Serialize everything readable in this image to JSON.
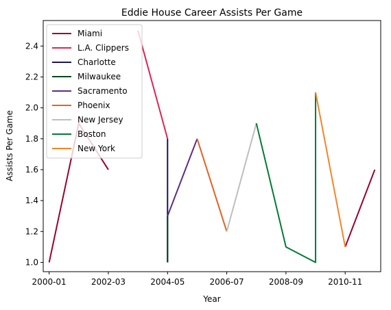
{
  "chart_data": {
    "type": "line",
    "title": "Eddie House Career Assists Per Game",
    "xlabel": "Year",
    "ylabel": "Assists Per Game",
    "x_ticks": [
      "2000-01",
      "2002-03",
      "2004-05",
      "2006-07",
      "2008-09",
      "2010-11"
    ],
    "y_ticks": [
      "1.0",
      "1.2",
      "1.4",
      "1.6",
      "1.8",
      "2.0",
      "2.2",
      "2.4"
    ],
    "xlim": [
      -0.2,
      11.2
    ],
    "ylim": [
      0.94,
      2.565
    ],
    "grid": false,
    "legend_position": "upper-left",
    "series": [
      {
        "name": "Miami",
        "color": "#98002e",
        "segments": [
          {
            "x": [
              0,
              1,
              2
            ],
            "y": [
              1.0,
              1.9,
              1.6
            ]
          },
          {
            "x": [
              10,
              11
            ],
            "y": [
              1.1,
              1.6
            ]
          }
        ]
      },
      {
        "name": "L.A. Clippers",
        "color": "#e0234e",
        "segments": [
          {
            "x": [
              3,
              4
            ],
            "y": [
              2.5,
              1.8
            ]
          }
        ]
      },
      {
        "name": "Charlotte",
        "color": "#1d1160",
        "segments": [
          {
            "x": [
              4,
              4
            ],
            "y": [
              1.8,
              1.0
            ]
          }
        ]
      },
      {
        "name": "Milwaukee",
        "color": "#00471b",
        "segments": [
          {
            "x": [
              4,
              4
            ],
            "y": [
              1.3,
              1.0
            ]
          }
        ]
      },
      {
        "name": "Sacramento",
        "color": "#5a2d81",
        "segments": [
          {
            "x": [
              4,
              5
            ],
            "y": [
              1.3,
              1.8
            ]
          }
        ]
      },
      {
        "name": "Phoenix",
        "color": "#e56020",
        "segments": [
          {
            "x": [
              5,
              6
            ],
            "y": [
              1.8,
              1.2
            ]
          }
        ]
      },
      {
        "name": "New Jersey",
        "color": "#bebebe",
        "segments": [
          {
            "x": [
              6,
              7
            ],
            "y": [
              1.2,
              1.9
            ]
          }
        ]
      },
      {
        "name": "Boston",
        "color": "#007a33",
        "segments": [
          {
            "x": [
              7,
              8,
              9,
              9
            ],
            "y": [
              1.9,
              1.1,
              1.0,
              2.1
            ]
          }
        ]
      },
      {
        "name": "New York",
        "color": "#f58426",
        "segments": [
          {
            "x": [
              9,
              10
            ],
            "y": [
              2.1,
              1.1
            ]
          }
        ]
      }
    ]
  }
}
